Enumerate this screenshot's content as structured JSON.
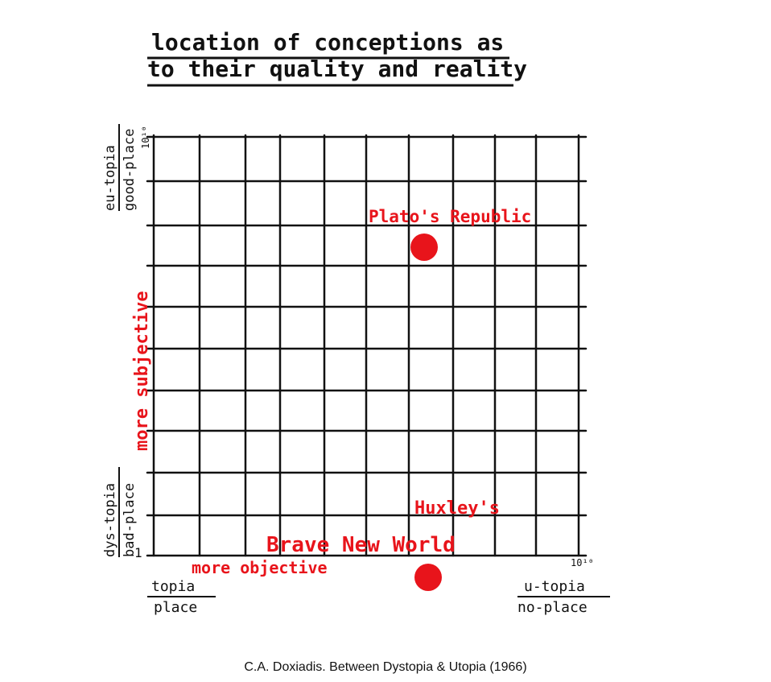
{
  "title": {
    "line1": "location of conceptions as",
    "line2": "to their quality and reality"
  },
  "y_axis": {
    "top_label_line1": "eu-topia",
    "top_label_line2": "good-place",
    "top_tick": "10¹⁰",
    "bottom_label_line1": "dys-topia",
    "bottom_label_line2": "bad-place",
    "bottom_tick": "1",
    "direction_label": "more subjective"
  },
  "x_axis": {
    "left_label_line1": "topia",
    "left_label_line2": "place",
    "right_label_line1": "u-topia",
    "right_label_line2": "no-place",
    "right_tick": "10¹⁰",
    "direction_label": "more objective"
  },
  "points": [
    {
      "label": "Plato's Republic"
    },
    {
      "label_line1": "Huxley's",
      "label_line2": "Brave New World"
    }
  ],
  "colors": {
    "ink": "#111111",
    "accent": "#e8141b"
  },
  "caption": "C.A. Doxiadis. Between Dystopia & Utopia (1966)"
}
